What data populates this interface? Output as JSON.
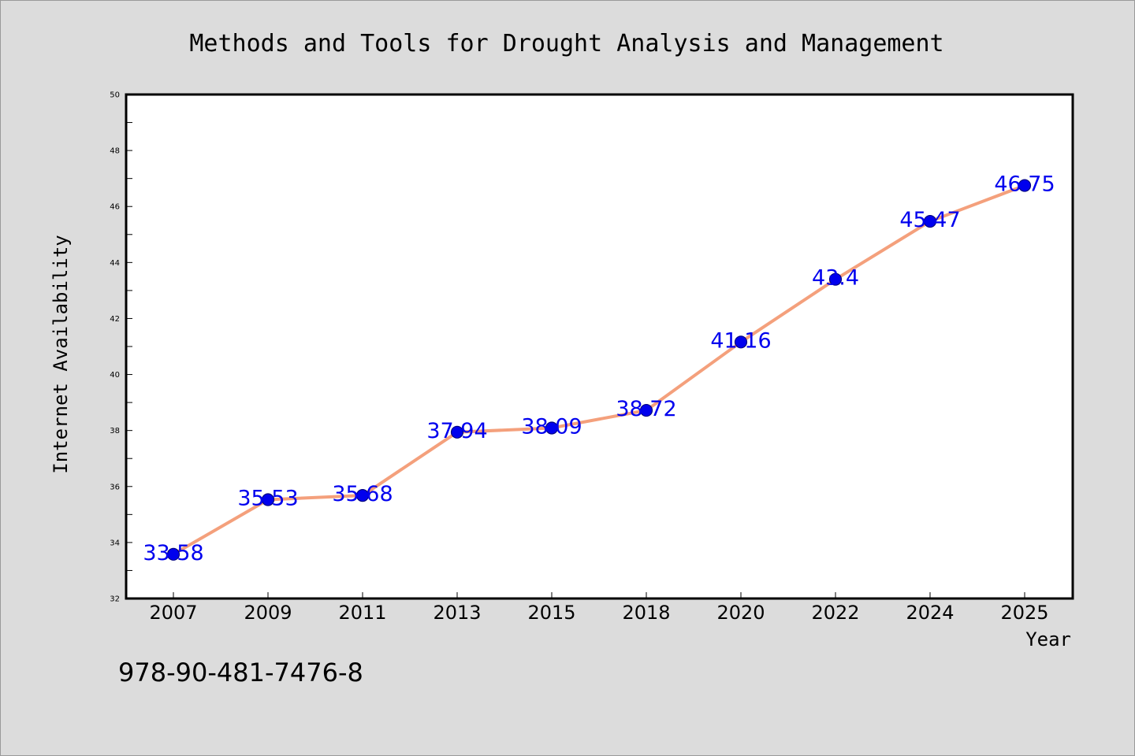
{
  "chart_data": {
    "type": "line",
    "title": "Methods and Tools for Drought Analysis and Management",
    "xlabel": "Year",
    "ylabel": "Internet Availability",
    "categories": [
      "2007",
      "2009",
      "2011",
      "2013",
      "2015",
      "2018",
      "2020",
      "2022",
      "2024",
      "2025"
    ],
    "series": [
      {
        "values": [
          33.58,
          35.53,
          35.68,
          37.94,
          38.09,
          38.72,
          41.16,
          43.4,
          45.47,
          46.75
        ],
        "labels": [
          "33.58",
          "35.53",
          "35.68",
          "37.94",
          "38.09",
          "38.72",
          "41.16",
          "43.4",
          "45.47",
          "46.75"
        ]
      }
    ],
    "ylim": [
      32,
      50
    ],
    "yticks": [
      32,
      34,
      36,
      38,
      40,
      42,
      44,
      46,
      48,
      50
    ],
    "ytick_labels": [
      "32",
      "34",
      "36",
      "38",
      "40",
      "42",
      "44",
      "46",
      "48",
      "50"
    ],
    "grid": false,
    "legend": "none",
    "colors": {
      "line": "#f4a07c",
      "marker": "#0000ee",
      "marker_edge": "#000080",
      "data_label": "#0000ee",
      "plot_background": "#ffffff",
      "figure_background": "#dcdcdc"
    }
  },
  "footer": {
    "isbn": "978-90-481-7476-8"
  }
}
